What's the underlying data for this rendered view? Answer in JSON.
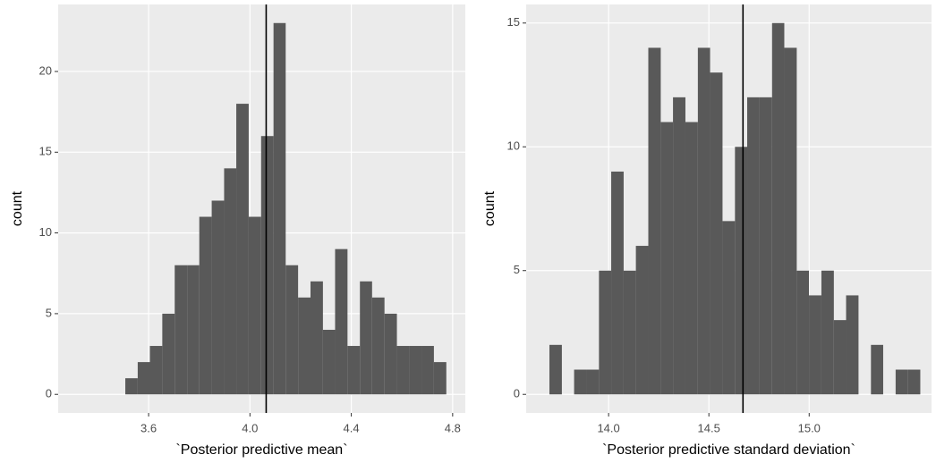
{
  "chart_data": [
    {
      "type": "histogram",
      "x_label": "`Posterior predictive mean`",
      "y_label": "count",
      "bins": [
        3.508,
        3.557,
        3.605,
        3.654,
        3.703,
        3.752,
        3.8,
        3.849,
        3.898,
        3.946,
        3.995,
        4.044,
        4.093,
        4.141,
        4.19,
        4.239,
        4.288,
        4.336,
        4.385,
        4.434,
        4.482,
        4.531,
        4.58,
        4.629,
        4.677,
        4.726,
        4.775
      ],
      "counts": [
        1,
        2,
        3,
        5,
        8,
        8,
        11,
        12,
        14,
        18,
        11,
        16,
        23,
        8,
        6,
        7,
        4,
        9,
        3,
        7,
        6,
        5,
        3,
        3,
        3,
        2
      ],
      "color": "#595959",
      "vline": 4.064,
      "xlim": [
        3.243,
        4.85
      ],
      "ylim": [
        -1.15,
        24.15
      ],
      "xticks": [
        3.6,
        {
          "value": 4.0,
          "label": "4.0"
        },
        4.4,
        4.8
      ],
      "yticks": [
        0,
        5,
        10,
        15,
        20
      ],
      "grid": true
    },
    {
      "type": "histogram",
      "x_label": "`Posterior predictive standard deviation`",
      "y_label": "count",
      "bins": [
        13.705,
        13.767,
        13.828,
        13.89,
        13.952,
        14.013,
        14.075,
        14.136,
        14.198,
        14.26,
        14.321,
        14.383,
        14.445,
        14.506,
        14.568,
        14.63,
        14.691,
        14.753,
        14.815,
        14.876,
        14.938,
        14.999,
        15.061,
        15.123,
        15.184,
        15.246,
        15.308,
        15.369,
        15.431,
        15.493,
        15.554
      ],
      "counts": [
        2,
        0,
        1,
        1,
        5,
        9,
        5,
        6,
        14,
        11,
        12,
        11,
        14,
        13,
        7,
        10,
        12,
        12,
        15,
        14,
        5,
        4,
        5,
        3,
        4,
        0,
        2,
        0,
        1,
        1
      ],
      "color": "#595959",
      "vline": 14.67,
      "xlim": [
        13.589,
        15.61
      ],
      "ylim": [
        -0.75,
        15.75
      ],
      "xticks": [
        {
          "value": 14.0,
          "label": "14.0"
        },
        14.5,
        {
          "value": 15.0,
          "label": "15.0"
        }
      ],
      "yticks": [
        0,
        5,
        10,
        15
      ],
      "grid": true
    }
  ]
}
